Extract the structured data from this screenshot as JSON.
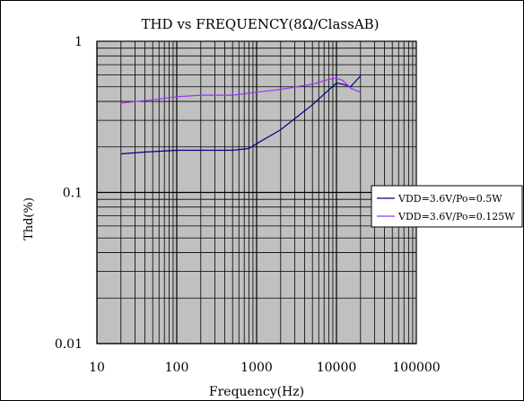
{
  "chart_data": {
    "type": "line",
    "title": "THD vs FREQUENCY(8Ω/ClassAB)",
    "xlabel": "Frequency(Hz)",
    "ylabel": "Thd(%)",
    "x_scale": "log",
    "y_scale": "log",
    "xlim": [
      10,
      100000
    ],
    "ylim": [
      0.01,
      1
    ],
    "x_ticks": [
      {
        "value": 10,
        "label": "10"
      },
      {
        "value": 100,
        "label": "100"
      },
      {
        "value": 1000,
        "label": "1000"
      },
      {
        "value": 10000,
        "label": "10000"
      },
      {
        "value": 100000,
        "label": "100000"
      }
    ],
    "y_ticks": [
      {
        "value": 1,
        "label": "1"
      },
      {
        "value": 0.1,
        "label": "0.1"
      },
      {
        "value": 0.01,
        "label": "0.01"
      }
    ],
    "grid": true,
    "plot_background": "#c0c0c0",
    "legend_position": "right",
    "series": [
      {
        "name": "VDD=3.6V/Po=0.5W",
        "color": "#000080",
        "x": [
          20,
          40,
          100,
          200,
          500,
          800,
          1000,
          2000,
          5000,
          10000,
          12000,
          15000,
          20000
        ],
        "y": [
          0.18,
          0.185,
          0.19,
          0.19,
          0.19,
          0.195,
          0.21,
          0.26,
          0.38,
          0.53,
          0.52,
          0.5,
          0.59
        ]
      },
      {
        "name": "VDD=3.6V/Po=0.125W",
        "color": "#9b30ff",
        "x": [
          20,
          50,
          100,
          200,
          500,
          1000,
          2000,
          5000,
          8000,
          10000,
          12000,
          15000,
          20000
        ],
        "y": [
          0.39,
          0.41,
          0.43,
          0.44,
          0.44,
          0.46,
          0.48,
          0.52,
          0.56,
          0.57,
          0.55,
          0.49,
          0.46
        ]
      }
    ]
  }
}
